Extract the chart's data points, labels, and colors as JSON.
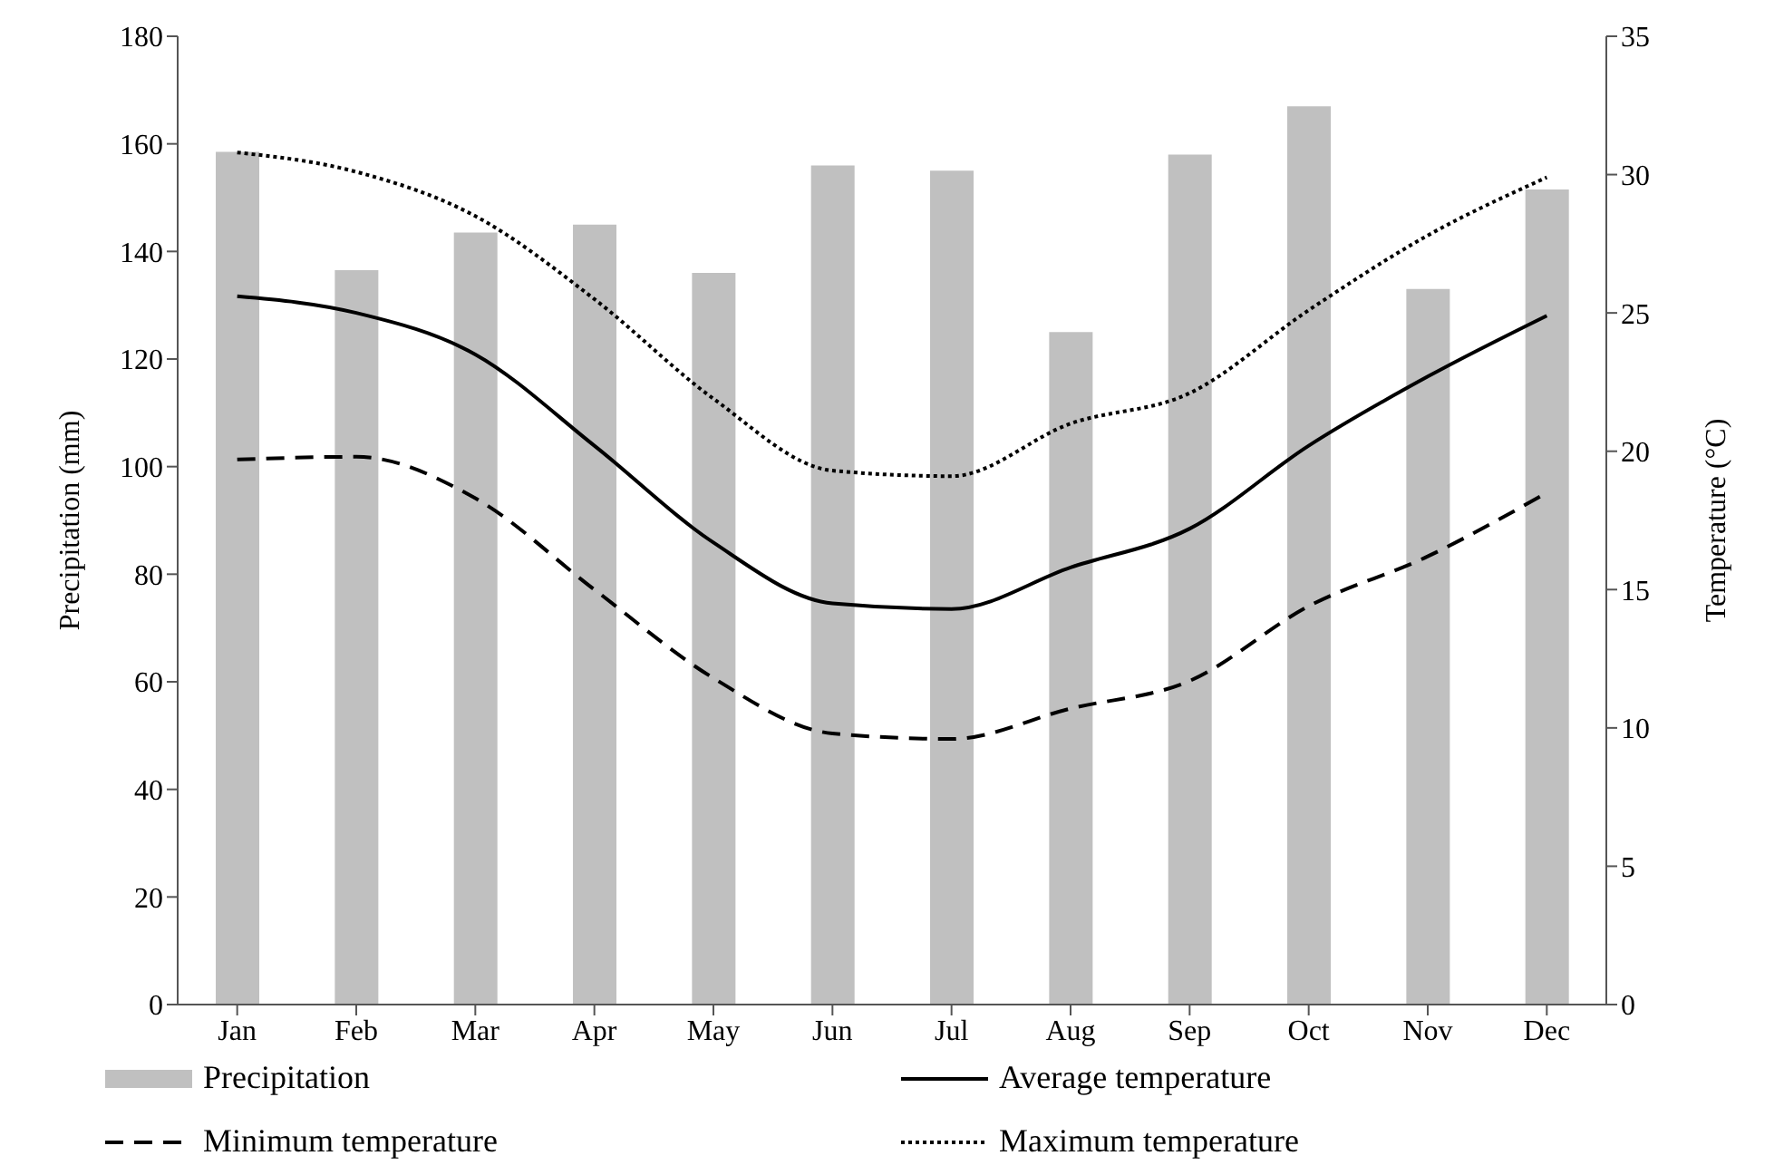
{
  "chart_data": {
    "type": "bar",
    "categories": [
      "Jan",
      "Feb",
      "Mar",
      "Apr",
      "May",
      "Jun",
      "Jul",
      "Aug",
      "Sep",
      "Oct",
      "Nov",
      "Dec"
    ],
    "ylabel": "Precipitation (mm)",
    "y2label": "Temperature (°C)",
    "ylim": [
      0,
      180
    ],
    "yticks": [
      0,
      20,
      40,
      60,
      80,
      100,
      120,
      140,
      160,
      180
    ],
    "y2lim": [
      0,
      35
    ],
    "y2ticks": [
      0,
      5,
      10,
      15,
      20,
      25,
      30,
      35
    ],
    "grid": false,
    "legend": "bottom",
    "marker": "none",
    "series": [
      {
        "name": "Precipitation",
        "color": "#c0c0c0",
        "values": [
          158.5,
          136.5,
          143.5,
          145,
          136,
          156,
          155,
          125,
          158,
          167,
          133,
          151.5
        ]
      },
      {
        "name": "Average temperature",
        "type": "line",
        "axis": "y2",
        "color": "#000000",
        "line_style": "solid",
        "values": [
          25.6,
          25.0,
          23.5,
          20.2,
          16.7,
          14.5,
          14.3,
          15.8,
          17.2,
          20.2,
          22.7,
          24.9
        ]
      },
      {
        "name": "Minimum temperature",
        "type": "line",
        "axis": "y2",
        "color": "#000000",
        "line_style": "dashed",
        "values": [
          19.7,
          19.8,
          18.3,
          15.0,
          11.8,
          9.8,
          9.6,
          10.7,
          11.7,
          14.4,
          16.2,
          18.5
        ]
      },
      {
        "name": "Maximum temperature",
        "type": "line",
        "axis": "y2",
        "color": "#000000",
        "line_style": "dotted",
        "values": [
          30.8,
          30.1,
          28.5,
          25.5,
          21.9,
          19.3,
          19.1,
          21.0,
          22.1,
          25.1,
          27.8,
          29.9
        ]
      }
    ]
  }
}
